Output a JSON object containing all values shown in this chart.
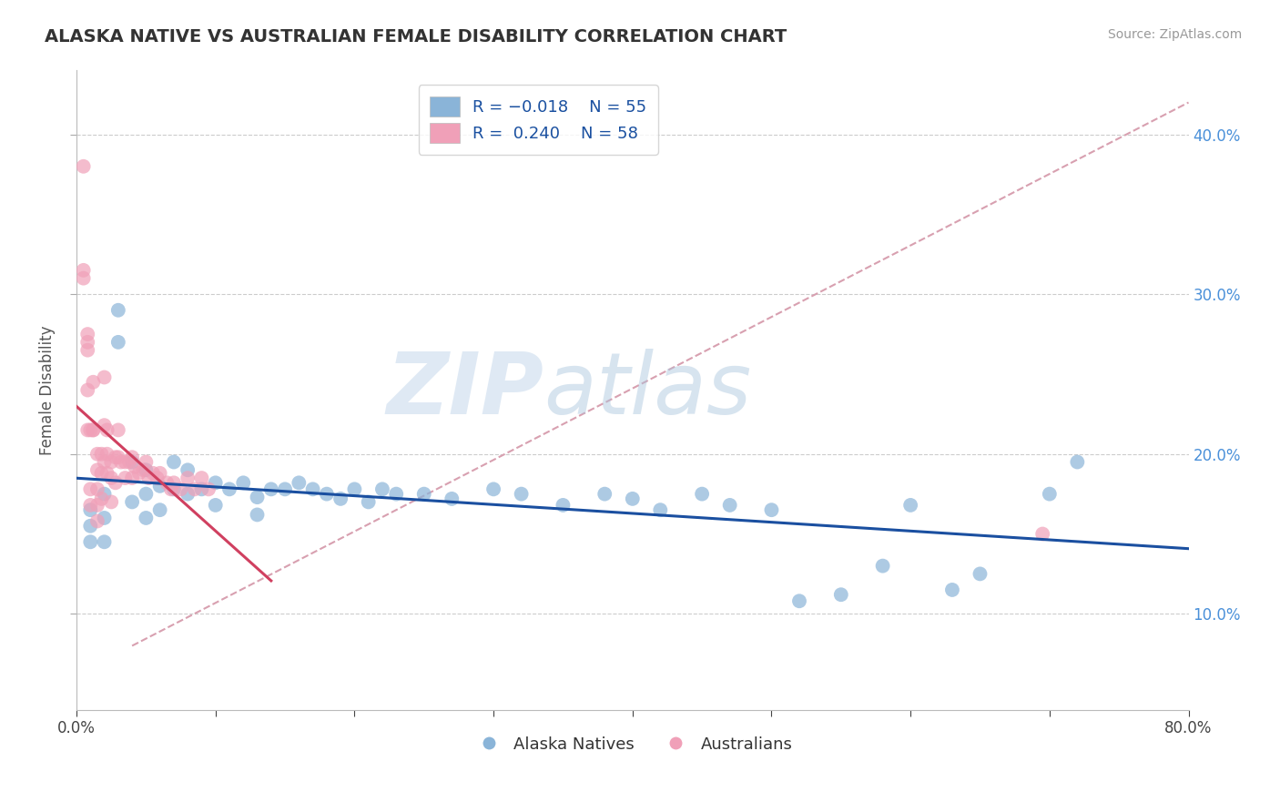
{
  "title": "ALASKA NATIVE VS AUSTRALIAN FEMALE DISABILITY CORRELATION CHART",
  "source": "Source: ZipAtlas.com",
  "ylabel": "Female Disability",
  "xlim": [
    0.0,
    0.8
  ],
  "ylim": [
    0.04,
    0.44
  ],
  "xticks": [
    0.0,
    0.1,
    0.2,
    0.3,
    0.4,
    0.5,
    0.6,
    0.7,
    0.8
  ],
  "yticks": [
    0.1,
    0.2,
    0.3,
    0.4
  ],
  "color_blue": "#8ab4d8",
  "color_pink": "#f0a0b8",
  "line_blue": "#1a4fa0",
  "line_pink": "#d04060",
  "line_diag": "#d8a0b0",
  "watermark_zip": "ZIP",
  "watermark_atlas": "atlas",
  "alaska_natives_x": [
    0.01,
    0.01,
    0.01,
    0.02,
    0.02,
    0.02,
    0.03,
    0.03,
    0.04,
    0.04,
    0.05,
    0.05,
    0.05,
    0.06,
    0.06,
    0.07,
    0.07,
    0.08,
    0.08,
    0.09,
    0.1,
    0.1,
    0.11,
    0.12,
    0.13,
    0.13,
    0.14,
    0.15,
    0.16,
    0.17,
    0.18,
    0.19,
    0.2,
    0.21,
    0.22,
    0.23,
    0.25,
    0.27,
    0.3,
    0.32,
    0.35,
    0.38,
    0.4,
    0.42,
    0.45,
    0.47,
    0.5,
    0.52,
    0.55,
    0.58,
    0.6,
    0.63,
    0.65,
    0.7,
    0.72
  ],
  "alaska_natives_y": [
    0.165,
    0.155,
    0.145,
    0.175,
    0.16,
    0.145,
    0.29,
    0.27,
    0.195,
    0.17,
    0.19,
    0.175,
    0.16,
    0.18,
    0.165,
    0.195,
    0.178,
    0.19,
    0.175,
    0.178,
    0.182,
    0.168,
    0.178,
    0.182,
    0.173,
    0.162,
    0.178,
    0.178,
    0.182,
    0.178,
    0.175,
    0.172,
    0.178,
    0.17,
    0.178,
    0.175,
    0.175,
    0.172,
    0.178,
    0.175,
    0.168,
    0.175,
    0.172,
    0.165,
    0.175,
    0.168,
    0.165,
    0.108,
    0.112,
    0.13,
    0.168,
    0.115,
    0.125,
    0.175,
    0.195
  ],
  "australians_x": [
    0.005,
    0.005,
    0.005,
    0.008,
    0.008,
    0.008,
    0.008,
    0.008,
    0.01,
    0.01,
    0.01,
    0.012,
    0.012,
    0.012,
    0.015,
    0.015,
    0.015,
    0.015,
    0.015,
    0.018,
    0.018,
    0.018,
    0.02,
    0.02,
    0.02,
    0.022,
    0.022,
    0.022,
    0.025,
    0.025,
    0.025,
    0.028,
    0.028,
    0.03,
    0.03,
    0.032,
    0.035,
    0.035,
    0.038,
    0.04,
    0.04,
    0.042,
    0.045,
    0.048,
    0.05,
    0.052,
    0.055,
    0.058,
    0.06,
    0.065,
    0.068,
    0.07,
    0.075,
    0.08,
    0.085,
    0.09,
    0.095,
    0.695
  ],
  "australians_y": [
    0.38,
    0.315,
    0.31,
    0.275,
    0.27,
    0.265,
    0.24,
    0.215,
    0.215,
    0.178,
    0.168,
    0.245,
    0.215,
    0.215,
    0.2,
    0.19,
    0.178,
    0.168,
    0.158,
    0.2,
    0.188,
    0.172,
    0.248,
    0.218,
    0.195,
    0.215,
    0.2,
    0.188,
    0.195,
    0.185,
    0.17,
    0.198,
    0.182,
    0.215,
    0.198,
    0.195,
    0.195,
    0.185,
    0.195,
    0.198,
    0.185,
    0.192,
    0.188,
    0.19,
    0.195,
    0.185,
    0.188,
    0.185,
    0.188,
    0.182,
    0.178,
    0.182,
    0.178,
    0.185,
    0.178,
    0.185,
    0.178,
    0.15
  ]
}
